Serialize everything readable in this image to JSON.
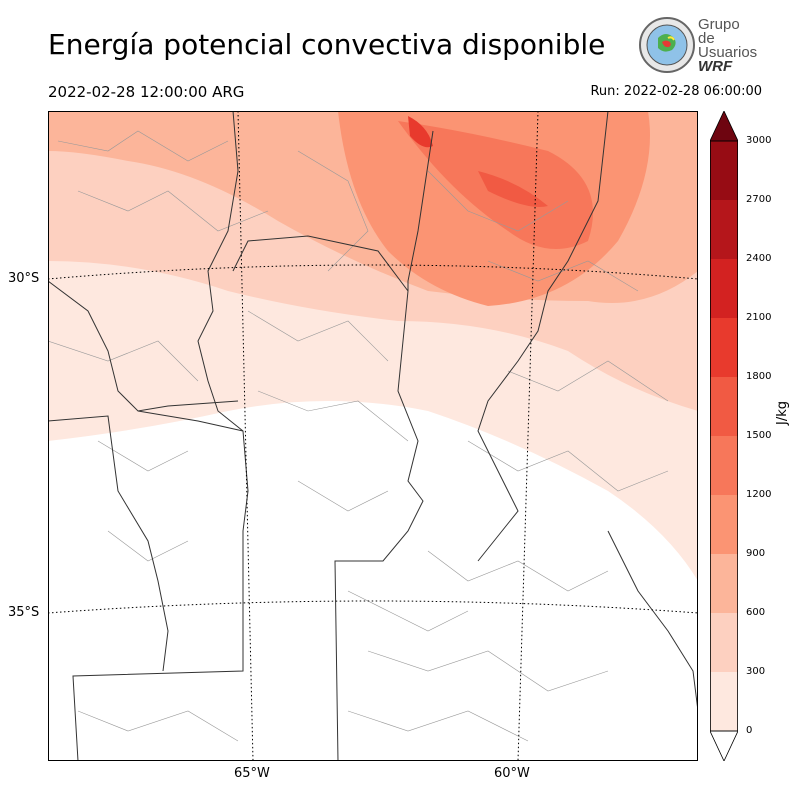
{
  "title": "Energía potencial convectiva disponible",
  "valid_time": "2022-02-28 12:00:00 ARG",
  "run_time": "Run: 2022-02-28 06:00:00",
  "logo": {
    "line1": "Grupo de",
    "line2": "Usuarios",
    "line3": "WRF"
  },
  "lat_labels": [
    "30°S",
    "35°S"
  ],
  "lon_labels": [
    "65°W",
    "60°W"
  ],
  "colorbar": {
    "unit": "J/kg",
    "ticks": [
      "3000",
      "2700",
      "2400",
      "2100",
      "1800",
      "1500",
      "1200",
      "900",
      "600",
      "300",
      "0"
    ],
    "colors": [
      "#fee8df",
      "#fdd0c0",
      "#fcb59a",
      "#fb9473",
      "#f7775a",
      "#f15a43",
      "#e83a2d",
      "#d32221",
      "#b5161b",
      "#970c14",
      "#6e0510"
    ]
  }
}
